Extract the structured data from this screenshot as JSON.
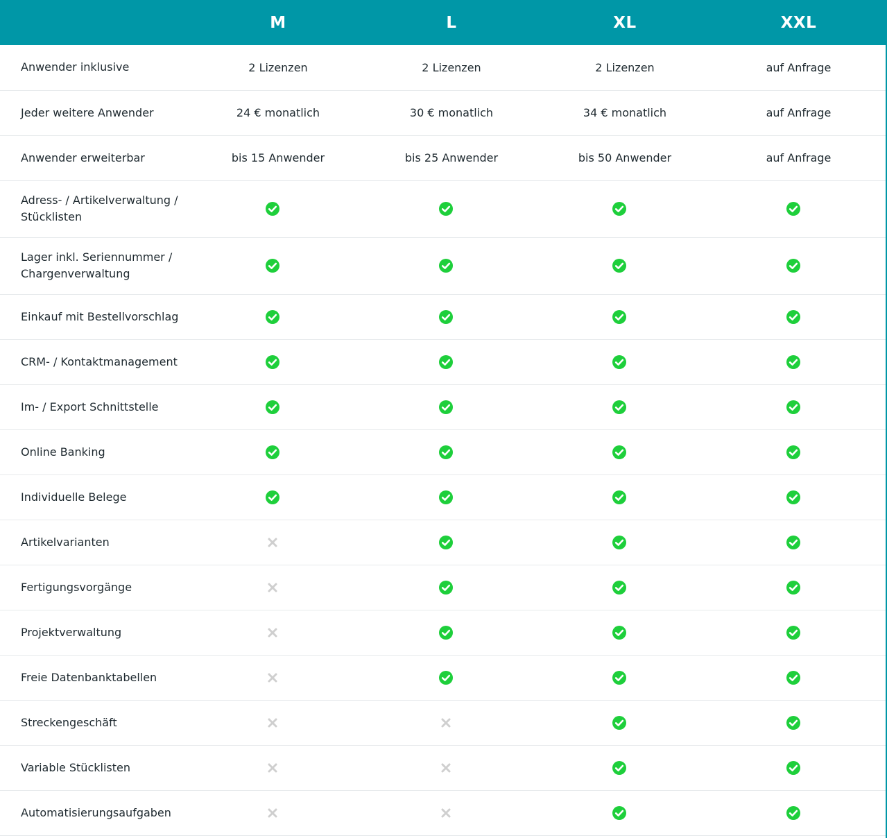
{
  "plans": [
    "M",
    "L",
    "XL",
    "XXL"
  ],
  "colors": {
    "header_bg": "#0097a7",
    "check": "#1ecf3b",
    "cross": "#cfcfcf"
  },
  "rows": [
    {
      "label": "Anwender inklusive",
      "values": [
        "2 Lizenzen",
        "2 Lizenzen",
        "2 Lizenzen",
        "auf Anfrage"
      ]
    },
    {
      "label": "Jeder weitere Anwender",
      "values": [
        "24 € monatlich",
        "30 € monatlich",
        "34 € monatlich",
        "auf Anfrage"
      ]
    },
    {
      "label": "Anwender erweiterbar",
      "values": [
        "bis 15 Anwender",
        "bis 25 Anwender",
        "bis 50 Anwender",
        "auf Anfrage"
      ]
    },
    {
      "label_lines": [
        "Adress- / Artikelverwaltung /",
        "Stücklisten"
      ],
      "values": [
        true,
        true,
        true,
        true
      ]
    },
    {
      "label_lines": [
        "Lager inkl. Seriennummer /",
        "Chargenverwaltung"
      ],
      "values": [
        true,
        true,
        true,
        true
      ]
    },
    {
      "label": "Einkauf mit Bestellvorschlag",
      "values": [
        true,
        true,
        true,
        true
      ]
    },
    {
      "label": "CRM- / Kontaktmanagement",
      "values": [
        true,
        true,
        true,
        true
      ]
    },
    {
      "label": "Im- / Export Schnittstelle",
      "values": [
        true,
        true,
        true,
        true
      ]
    },
    {
      "label": "Online Banking",
      "values": [
        true,
        true,
        true,
        true
      ]
    },
    {
      "label": "Individuelle Belege",
      "values": [
        true,
        true,
        true,
        true
      ]
    },
    {
      "label": "Artikelvarianten",
      "values": [
        false,
        true,
        true,
        true
      ]
    },
    {
      "label": "Fertigungsvorgänge",
      "values": [
        false,
        true,
        true,
        true
      ]
    },
    {
      "label": "Projektverwaltung",
      "values": [
        false,
        true,
        true,
        true
      ]
    },
    {
      "label": "Freie Datenbanktabellen",
      "values": [
        false,
        true,
        true,
        true
      ]
    },
    {
      "label": "Streckengeschäft",
      "values": [
        false,
        false,
        true,
        true
      ]
    },
    {
      "label": "Variable Stücklisten",
      "values": [
        false,
        false,
        true,
        true
      ]
    },
    {
      "label": "Automatisierungsaufgaben",
      "values": [
        false,
        false,
        true,
        true
      ]
    }
  ]
}
